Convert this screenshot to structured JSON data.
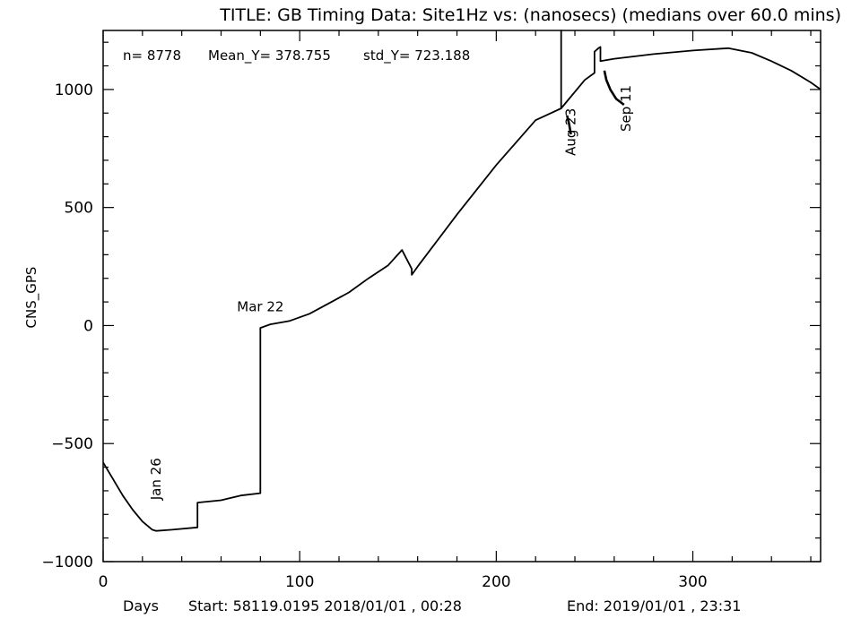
{
  "chart_data": {
    "type": "line",
    "title": "TITLE: GB Timing Data: Site1Hz vs: (nanosecs) (medians over 60.0 mins)",
    "ylabel": "CNS_GPS",
    "xlabel": "Days",
    "xlim": [
      0,
      365
    ],
    "ylim": [
      -1000,
      1250
    ],
    "x_ticks": [
      0,
      100,
      200,
      300
    ],
    "y_ticks": [
      -1000,
      -500,
      0,
      500,
      1000
    ],
    "stats": {
      "n": "n= 8778",
      "mean": "Mean_Y= 378.755",
      "std": "std_Y= 723.188"
    },
    "footer": {
      "days": "Days",
      "start": "Start: 58119.0195 2018/01/01 , 00:28",
      "end": "End: 2019/01/01 , 23:31"
    },
    "annotations": [
      {
        "text": "Jan 26",
        "x": 27,
        "y": -650,
        "rotate": true
      },
      {
        "text": "Mar 22",
        "x": 80,
        "y": 60,
        "rotate": false
      },
      {
        "text": "Aug 23",
        "x": 238,
        "y": 820,
        "rotate": true
      },
      {
        "text": "Sep 11",
        "x": 266,
        "y": 920,
        "rotate": true
      }
    ],
    "series": [
      {
        "x": [
          0,
          5,
          10,
          15,
          20,
          25,
          27,
          35,
          48,
          48,
          60,
          70,
          80,
          80,
          85,
          95,
          105,
          115,
          125,
          135,
          145,
          152,
          157,
          157,
          160,
          180,
          200,
          220,
          233,
          233,
          233,
          245,
          250,
          250,
          252,
          253,
          253,
          260,
          280,
          300,
          318,
          330,
          340,
          350,
          360,
          365
        ],
        "y": [
          -580,
          -650,
          -720,
          -780,
          -830,
          -865,
          -870,
          -865,
          -855,
          -750,
          -740,
          -720,
          -710,
          -10,
          5,
          20,
          50,
          95,
          140,
          200,
          255,
          320,
          240,
          215,
          250,
          470,
          680,
          870,
          920,
          1250,
          920,
          1040,
          1070,
          1160,
          1175,
          1180,
          1120,
          1130,
          1150,
          1165,
          1175,
          1155,
          1120,
          1080,
          1030,
          1000
        ]
      },
      {
        "x": [
          236,
          237,
          238
        ],
        "y": [
          890,
          855,
          810
        ]
      },
      {
        "x": [
          255,
          256,
          258,
          261,
          265
        ],
        "y": [
          1080,
          1040,
          1000,
          960,
          935
        ]
      }
    ]
  }
}
